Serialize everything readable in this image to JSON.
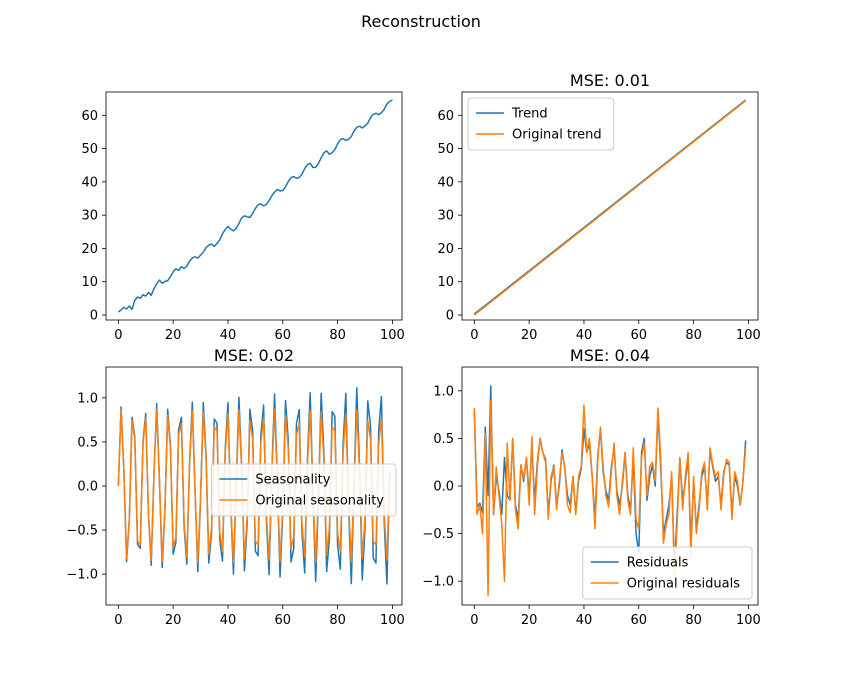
{
  "figure": {
    "title": "Reconstruction"
  },
  "colors": {
    "series_blue": "#1f77b4",
    "series_orange": "#ff7f0e"
  },
  "chart_data": [
    {
      "type": "line",
      "title": "",
      "xlim": [
        0,
        99
      ],
      "ylim": [
        -1.5,
        67
      ],
      "xticks": [
        0,
        20,
        40,
        60,
        80,
        100
      ],
      "yticks": [
        0,
        10,
        20,
        30,
        40,
        50,
        60
      ],
      "legend": "none",
      "series": [
        {
          "name": "",
          "color": "#1f77b4",
          "values": [
            0.9,
            1.5,
            2.3,
            1.8,
            2.7,
            1.7,
            4.4,
            5.4,
            5.0,
            6.1,
            5.7,
            6.8,
            5.9,
            7.9,
            9.4,
            10.5,
            9.5,
            10.1,
            10.3,
            11.5,
            13.0,
            13.9,
            13.4,
            14.5,
            14.0,
            14.7,
            16.2,
            17.1,
            17.5,
            17.1,
            18.0,
            18.9,
            20.2,
            21.0,
            21.3,
            20.6,
            21.5,
            22.6,
            24.4,
            25.7,
            26.6,
            25.8,
            25.3,
            26.0,
            27.5,
            29.2,
            29.8,
            29.5,
            29.3,
            30.5,
            32.0,
            33.1,
            33.4,
            32.8,
            33.2,
            34.4,
            35.8,
            36.9,
            37.7,
            37.3,
            37.4,
            38.5,
            40.1,
            41.3,
            41.6,
            41.1,
            41.3,
            42.3,
            44.0,
            45.2,
            45.6,
            44.3,
            44.4,
            45.5,
            47.2,
            48.7,
            49.3,
            48.3,
            48.8,
            49.7,
            51.4,
            52.7,
            53.0,
            52.5,
            52.8,
            53.6,
            55.3,
            56.4,
            56.7,
            56.2,
            56.8,
            57.6,
            59.3,
            60.3,
            60.6,
            60.2,
            60.8,
            61.8,
            63.4,
            64.2,
            64.6
          ]
        }
      ]
    },
    {
      "type": "line",
      "title": "MSE:  0.01",
      "xlim": [
        0,
        99
      ],
      "ylim": [
        -1.5,
        67
      ],
      "xticks": [
        0,
        20,
        40,
        60,
        80,
        100
      ],
      "yticks": [
        0,
        10,
        20,
        30,
        40,
        50,
        60
      ],
      "legend": "upper-left",
      "series": [
        {
          "name": "Trend",
          "color": "#1f77b4",
          "line": {
            "start": [
              0,
              0.3
            ],
            "end": [
              99,
              64.6
            ]
          }
        },
        {
          "name": "Original trend",
          "color": "#ff7f0e",
          "line": {
            "start": [
              0,
              0.0
            ],
            "end": [
              99,
              64.4
            ]
          }
        }
      ]
    },
    {
      "type": "line",
      "title": "MSE:  0.02",
      "xlim": [
        0,
        99
      ],
      "ylim": [
        -1.35,
        1.35
      ],
      "xticks": [
        0,
        20,
        40,
        60,
        80,
        100
      ],
      "yticks": [
        -1.0,
        -0.5,
        0.0,
        0.5,
        1.0
      ],
      "legend": "center-right",
      "series": [
        {
          "name": "Seasonality",
          "color": "#1f77b4",
          "model": "sine",
          "period": 4.3,
          "amplitude_start": 0.9,
          "amplitude_end": 1.15
        },
        {
          "name": "Original seasonality",
          "color": "#ff7f0e",
          "model": "sine",
          "period": 4.3,
          "amplitude": 0.87
        }
      ]
    },
    {
      "type": "line",
      "title": "MSE:  0.04",
      "xlim": [
        0,
        99
      ],
      "ylim": [
        -1.25,
        1.25
      ],
      "xticks": [
        0,
        20,
        40,
        60,
        80,
        100
      ],
      "yticks": [
        -1.0,
        -0.5,
        0.0,
        0.5,
        1.0
      ],
      "legend": "lower-right",
      "series": [
        {
          "name": "Residuals",
          "color": "#1f77b4",
          "values": [
            0.78,
            -0.22,
            -0.18,
            -0.28,
            0.62,
            -0.1,
            1.05,
            -0.3,
            0.1,
            -0.05,
            -0.3,
            0.3,
            -0.1,
            -0.15,
            0.5,
            -0.2,
            -0.35,
            0.22,
            0.05,
            0.3,
            -0.1,
            0.42,
            -0.15,
            0.25,
            0.5,
            0.35,
            0.28,
            -0.3,
            0.05,
            0.22,
            -0.2,
            0.0,
            0.38,
            0.18,
            -0.1,
            -0.2,
            0.1,
            -0.28,
            0.05,
            0.18,
            0.6,
            0.35,
            0.45,
            0.1,
            -0.35,
            0.3,
            0.6,
            0.15,
            -0.05,
            -0.15,
            0.2,
            0.4,
            -0.05,
            -0.2,
            0.0,
            0.35,
            -0.1,
            -0.25,
            0.3,
            -0.5,
            -0.7,
            0.35,
            0.5,
            -0.15,
            0.1,
            0.22,
            0.0,
            0.78,
            0.2,
            -0.5,
            -0.35,
            -0.2,
            0.1,
            -0.85,
            -0.3,
            0.28,
            -0.15,
            0.05,
            0.3,
            -0.6,
            0.05,
            -0.45,
            -0.2,
            0.1,
            0.2,
            -0.2,
            0.38,
            0.2,
            0.05,
            0.1,
            -0.2,
            0.15,
            0.25,
            0.22,
            -0.3,
            0.1,
            0.0,
            -0.2,
            0.05,
            0.48
          ]
        },
        {
          "name": "Original residuals",
          "color": "#ff7f0e",
          "values": [
            0.82,
            -0.3,
            -0.2,
            -0.5,
            0.55,
            -1.15,
            0.9,
            -0.3,
            0.2,
            -0.1,
            -0.4,
            -1.0,
            0.45,
            -0.15,
            0.5,
            -0.25,
            -0.45,
            0.22,
            0.08,
            0.3,
            -0.2,
            0.52,
            -0.3,
            0.2,
            0.5,
            0.35,
            0.25,
            -0.35,
            0.1,
            0.2,
            -0.25,
            0.05,
            0.35,
            0.2,
            -0.2,
            -0.28,
            0.1,
            -0.3,
            0.1,
            0.2,
            0.85,
            0.35,
            0.5,
            0.1,
            -0.45,
            0.25,
            0.62,
            0.2,
            -0.1,
            -0.22,
            0.15,
            0.45,
            -0.1,
            -0.3,
            0.05,
            0.35,
            -0.15,
            -0.3,
            0.4,
            -0.35,
            -0.45,
            0.3,
            0.45,
            -0.1,
            0.2,
            0.25,
            0.05,
            0.82,
            0.3,
            -0.6,
            -0.4,
            -0.3,
            0.15,
            -0.95,
            -0.4,
            0.3,
            -0.25,
            0.1,
            0.35,
            -0.75,
            0.1,
            -0.5,
            -0.25,
            0.15,
            0.25,
            -0.25,
            0.4,
            0.22,
            0.1,
            0.15,
            -0.25,
            0.12,
            0.28,
            0.25,
            -0.35,
            0.15,
            0.05,
            -0.2,
            0.05,
            0.4
          ]
        }
      ]
    }
  ]
}
